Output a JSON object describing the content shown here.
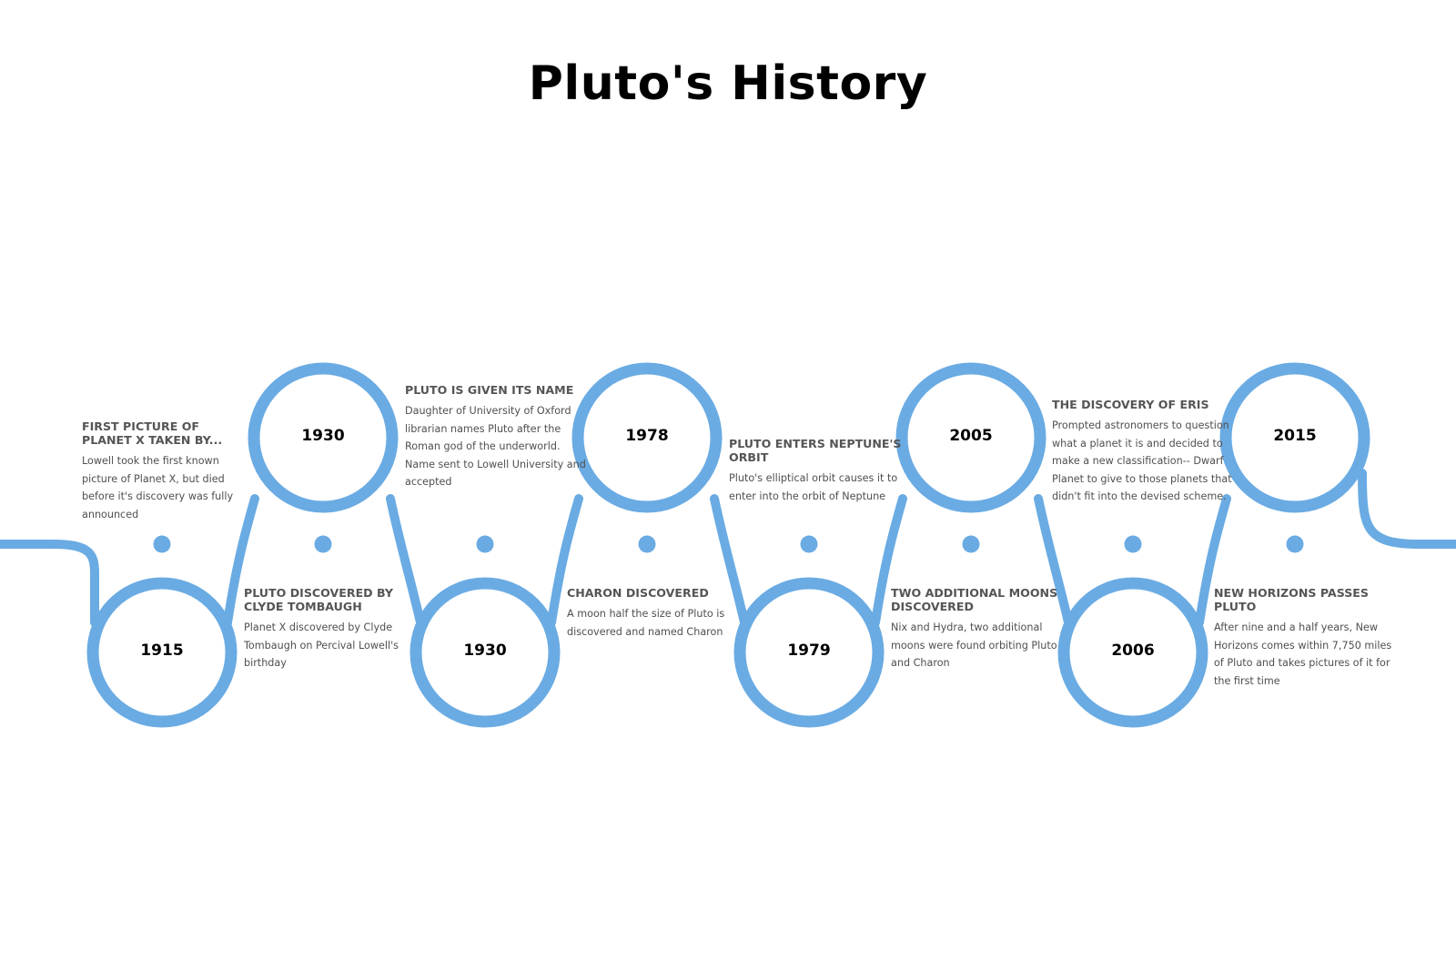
{
  "title": "Pluto's History",
  "colors": {
    "line": "#6aabe3",
    "dot": "#6aabe3",
    "heading": "#555555",
    "body": "#4f4f4f"
  },
  "events": [
    {
      "year": "1915",
      "heading": "FIRST PICTURE OF PLANET X TAKEN BY...",
      "description": "Lowell took the first known picture of Planet X, but died before it's discovery was fully announced"
    },
    {
      "year": "1930",
      "heading": "PLUTO DISCOVERED BY CLYDE TOMBAUGH",
      "description": "Planet X discovered by Clyde Tombaugh on Percival Lowell's birthday"
    },
    {
      "year": "1930",
      "heading": "PLUTO IS GIVEN ITS NAME",
      "description": "Daughter of University of Oxford librarian names Pluto after the Roman god of the underworld. Name sent to Lowell University and accepted"
    },
    {
      "year": "1978",
      "heading": "CHARON DISCOVERED",
      "description": "A moon half the size of Pluto is discovered and named Charon"
    },
    {
      "year": "1979",
      "heading": "PLUTO ENTERS NEPTUNE'S ORBIT",
      "description": "Pluto's elliptical orbit causes it to enter into the orbit of Neptune"
    },
    {
      "year": "2005",
      "heading": "TWO ADDITIONAL MOONS DISCOVERED",
      "description": "Nix and Hydra, two additional moons were found orbiting Pluto and Charon"
    },
    {
      "year": "2006",
      "heading": "THE DISCOVERY OF ERIS",
      "description": "Prompted astronomers to question what a planet it is and decided to make a new classification-- Dwarf Planet to give to those planets that didn't fit into the devised scheme."
    },
    {
      "year": "2015",
      "heading": "NEW HORIZONS PASSES PLUTO",
      "description": "After nine and a half years, New Horizons comes within 7,750 miles of Pluto and takes pictures of it for the first time"
    }
  ]
}
